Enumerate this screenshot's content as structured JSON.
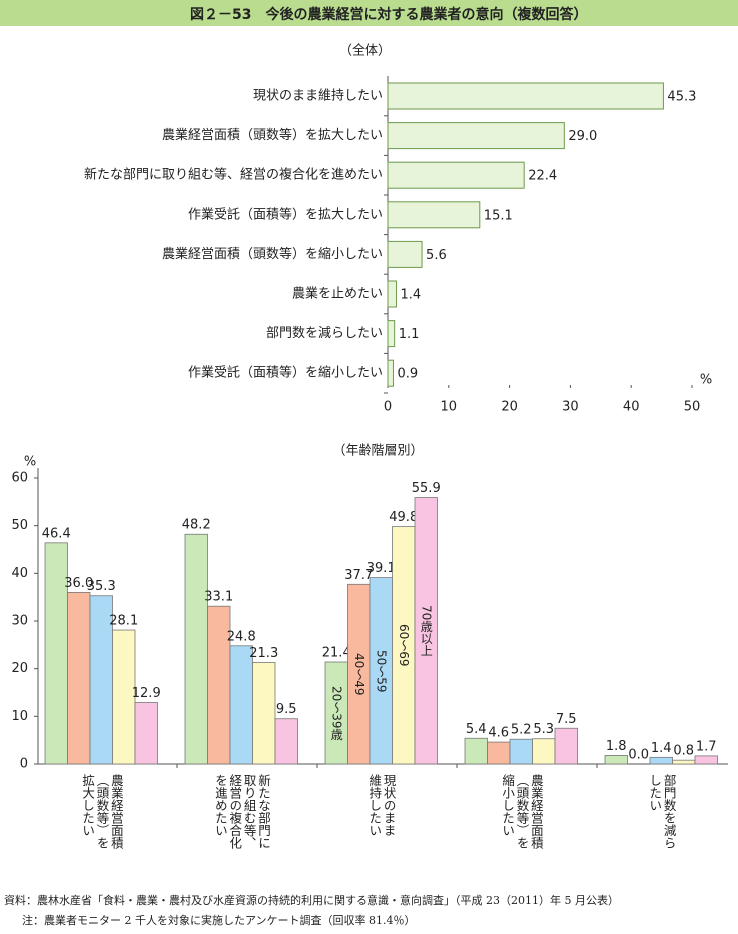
{
  "header": {
    "title": "図２－53　今後の農業経営に対する農業者の意向（複数回答）"
  },
  "chart_data": [
    {
      "type": "barh",
      "subtitle": "（全体）",
      "unit": "%",
      "categories": [
        "現状のまま維持したい",
        "農業経営面積（頭数等）を拡大したい",
        "新たな部門に取り組む等、経営の複合化を進めたい",
        "作業受託（面積等）を拡大したい",
        "農業経営面積（頭数等）を縮小したい",
        "農業を止めたい",
        "部門数を減らしたい",
        "作業受託（面積等）を縮小したい"
      ],
      "values": [
        45.3,
        29.0,
        22.4,
        15.1,
        5.6,
        1.4,
        1.1,
        0.9
      ],
      "value_labels": [
        "45.3",
        "29.0",
        "22.4",
        "15.1",
        "5.6",
        "1.4",
        "1.1",
        "0.9"
      ],
      "color": "#e8f4d9",
      "xlim": [
        0,
        50
      ],
      "xticks": [
        0,
        10,
        20,
        30,
        40,
        50
      ],
      "grid": false
    },
    {
      "type": "bar",
      "subtitle": "（年齢階層別）",
      "unit": "%",
      "categories": [
        "農業経営面積\n（頭数等）を\n拡大したい",
        "新たな部門に\n取り組む等、\n経営の複合化\nを進めたい",
        "現状のまま\n維持したい",
        "農業経営面積\n（頭数等）を\n縮小したい",
        "部門数を減ら\nしたい"
      ],
      "series": [
        {
          "name": "20～39歳",
          "color": "#cbe8b8",
          "values": [
            46.4,
            48.2,
            21.4,
            5.4,
            1.8
          ],
          "value_labels": [
            "46.4",
            "48.2",
            "21.4",
            "5.4",
            "1.8"
          ]
        },
        {
          "name": "40～49",
          "color": "#f8b99e",
          "values": [
            36.0,
            33.1,
            37.7,
            4.6,
            0.0
          ],
          "value_labels": [
            "36.0",
            "33.1",
            "37.7",
            "4.6",
            "0.0"
          ]
        },
        {
          "name": "50～59",
          "color": "#a9d9f5",
          "values": [
            35.3,
            24.8,
            39.1,
            5.2,
            1.4
          ],
          "value_labels": [
            "35.3",
            "24.8",
            "39.1",
            "5.2",
            "1.4"
          ]
        },
        {
          "name": "60～69",
          "color": "#fdf8c2",
          "values": [
            28.1,
            21.3,
            49.8,
            5.3,
            0.8
          ],
          "value_labels": [
            "28.1",
            "21.3",
            "49.8",
            "5.3",
            "0.8"
          ]
        },
        {
          "name": "70歳以上",
          "color": "#f9c4e1",
          "values": [
            12.9,
            9.5,
            55.9,
            7.5,
            1.7
          ],
          "value_labels": [
            "12.9",
            "9.5",
            "55.9",
            "7.5",
            "1.7"
          ]
        }
      ],
      "ylim": [
        0,
        60
      ],
      "yticks": [
        0,
        10,
        20,
        30,
        40,
        50,
        60
      ],
      "grid": false
    }
  ],
  "notes": [
    "資料：農林水産省「食料・農業・農村及び水産資源の持続的利用に関する意識・意向調査」（平成 23（2011）年 5 月公表）",
    "注：農業者モニター 2 千人を対象に実施したアンケート調査（回収率 81.4％）"
  ]
}
